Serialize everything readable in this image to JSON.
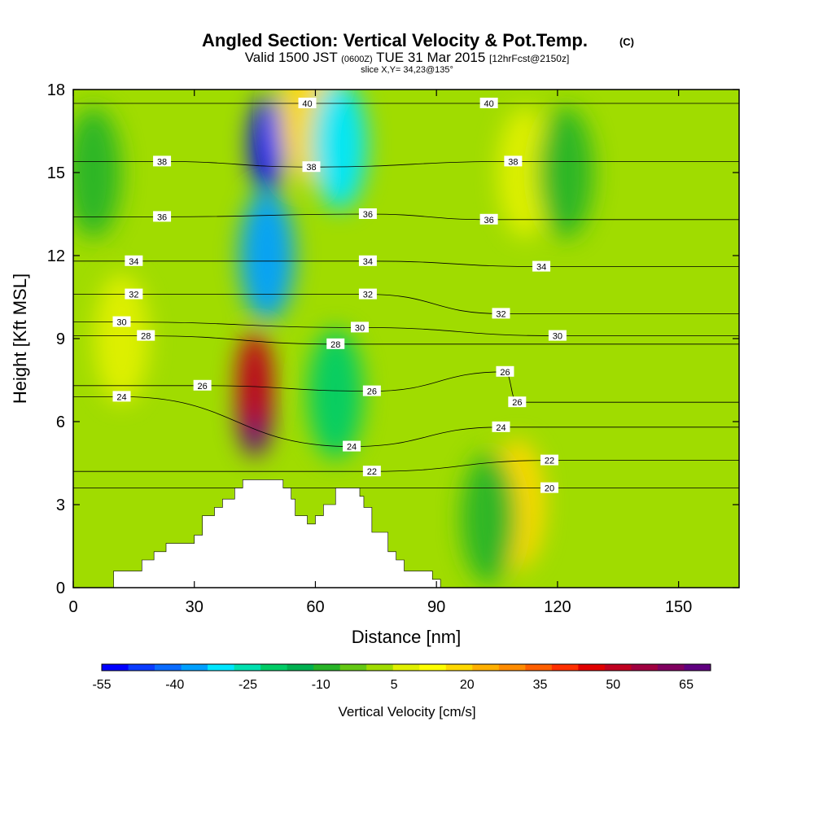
{
  "colors": {
    "background": "#ffffff",
    "palette": [
      "#0000ff",
      "#0a3cff",
      "#0a6cff",
      "#00a0ff",
      "#00e6ff",
      "#00e0b0",
      "#00cc66",
      "#00b050",
      "#28b428",
      "#64c814",
      "#a0dc00",
      "#e0f000",
      "#ffff00",
      "#ffd800",
      "#ffb000",
      "#ff8c00",
      "#ff6000",
      "#ff3000",
      "#e00000",
      "#c00020",
      "#a00040",
      "#800060",
      "#600080"
    ]
  },
  "chart_data": {
    "type": "heatmap",
    "title": "Angled Section: Vertical Velocity & Pot.Temp.",
    "title_unit": "(C)",
    "subtitle_parts": [
      "Valid 1500 JST",
      "(0600Z)",
      "TUE 31 Mar 2015",
      "[12hrFcst@2150z]"
    ],
    "slice_text": "slice X,Y= 34,23@135°",
    "xlabel": "Distance [nm]",
    "ylabel": "Height [Kft MSL]",
    "xlim": [
      0,
      165
    ],
    "ylim": [
      0,
      18
    ],
    "x_ticks": [
      0,
      30,
      60,
      90,
      120,
      150
    ],
    "y_ticks": [
      0,
      3,
      6,
      9,
      12,
      15,
      18
    ],
    "colorbar": {
      "label": "Vertical Velocity [cm/s]",
      "range": [
        -55,
        70
      ],
      "tick_values": [
        -55,
        -40,
        -25,
        -10,
        5,
        20,
        35,
        50,
        65
      ]
    },
    "vertical_velocity_features": [
      {
        "x": 45,
        "y": 6.5,
        "value": 65
      },
      {
        "x": 45,
        "y": 7.5,
        "value": 50
      },
      {
        "x": 48,
        "y": 16,
        "value": -55
      },
      {
        "x": 48,
        "y": 12,
        "value": -35
      },
      {
        "x": 58,
        "y": 17,
        "value": 20
      },
      {
        "x": 66,
        "y": 16,
        "value": -30
      },
      {
        "x": 65,
        "y": 7,
        "value": -20
      },
      {
        "x": 110,
        "y": 3,
        "value": 20
      },
      {
        "x": 112,
        "y": 15,
        "value": 10
      },
      {
        "x": 12,
        "y": 9,
        "value": 5
      },
      {
        "x": 5,
        "y": 15,
        "value": -10
      },
      {
        "x": 122,
        "y": 15,
        "value": -10
      },
      {
        "x": 103,
        "y": 2.5,
        "value": -10
      }
    ],
    "potential_temperature_contours": [
      {
        "value": 40,
        "labels": [
          [
            58,
            17.5
          ],
          [
            103,
            17.5
          ]
        ]
      },
      {
        "value": 38,
        "labels": [
          [
            22,
            15.4
          ],
          [
            59,
            15.2
          ],
          [
            109,
            15.4
          ]
        ]
      },
      {
        "value": 36,
        "labels": [
          [
            22,
            13.4
          ],
          [
            73,
            13.5
          ],
          [
            103,
            13.3
          ]
        ]
      },
      {
        "value": 34,
        "labels": [
          [
            15,
            11.8
          ],
          [
            73,
            11.8
          ],
          [
            116,
            11.6
          ]
        ]
      },
      {
        "value": 32,
        "labels": [
          [
            15,
            10.6
          ],
          [
            73,
            10.6
          ],
          [
            106,
            9.9
          ]
        ]
      },
      {
        "value": 30,
        "labels": [
          [
            12,
            9.6
          ],
          [
            71,
            9.4
          ],
          [
            120,
            9.1
          ]
        ]
      },
      {
        "value": 28,
        "labels": [
          [
            18,
            9.1
          ],
          [
            65,
            8.8
          ]
        ]
      },
      {
        "value": 26,
        "labels": [
          [
            32,
            7.3
          ],
          [
            74,
            7.1
          ],
          [
            107,
            7.8
          ],
          [
            110,
            6.7
          ]
        ]
      },
      {
        "value": 24,
        "labels": [
          [
            12,
            6.9
          ],
          [
            69,
            5.1
          ],
          [
            106,
            5.8
          ]
        ]
      },
      {
        "value": 22,
        "labels": [
          [
            74,
            4.2
          ],
          [
            118,
            4.6
          ]
        ]
      },
      {
        "value": 20,
        "labels": [
          [
            118,
            3.6
          ]
        ]
      }
    ],
    "terrain_profile": [
      [
        0,
        0
      ],
      [
        10,
        0
      ],
      [
        10,
        0.6
      ],
      [
        17,
        0.6
      ],
      [
        17,
        1
      ],
      [
        20,
        1
      ],
      [
        20,
        1.3
      ],
      [
        23,
        1.3
      ],
      [
        23,
        1.6
      ],
      [
        30,
        1.6
      ],
      [
        30,
        1.9
      ],
      [
        32,
        1.9
      ],
      [
        32,
        2.6
      ],
      [
        35,
        2.6
      ],
      [
        35,
        2.9
      ],
      [
        37,
        2.9
      ],
      [
        37,
        3.2
      ],
      [
        40,
        3.2
      ],
      [
        40,
        3.6
      ],
      [
        42,
        3.6
      ],
      [
        42,
        3.9
      ],
      [
        52,
        3.9
      ],
      [
        52,
        3.6
      ],
      [
        54,
        3.6
      ],
      [
        54,
        3.2
      ],
      [
        55,
        3.2
      ],
      [
        55,
        2.6
      ],
      [
        58,
        2.6
      ],
      [
        58,
        2.3
      ],
      [
        60,
        2.3
      ],
      [
        60,
        2.6
      ],
      [
        62,
        2.6
      ],
      [
        62,
        3
      ],
      [
        65,
        3
      ],
      [
        65,
        3.6
      ],
      [
        71,
        3.6
      ],
      [
        71,
        3.3
      ],
      [
        72,
        3.3
      ],
      [
        72,
        2.9
      ],
      [
        74,
        2.9
      ],
      [
        74,
        2
      ],
      [
        78,
        2
      ],
      [
        78,
        1.3
      ],
      [
        80,
        1.3
      ],
      [
        80,
        1
      ],
      [
        82,
        1
      ],
      [
        82,
        0.6
      ],
      [
        89,
        0.6
      ],
      [
        89,
        0.3
      ],
      [
        91,
        0.3
      ],
      [
        91,
        0
      ],
      [
        165,
        0
      ]
    ],
    "grid": false
  }
}
